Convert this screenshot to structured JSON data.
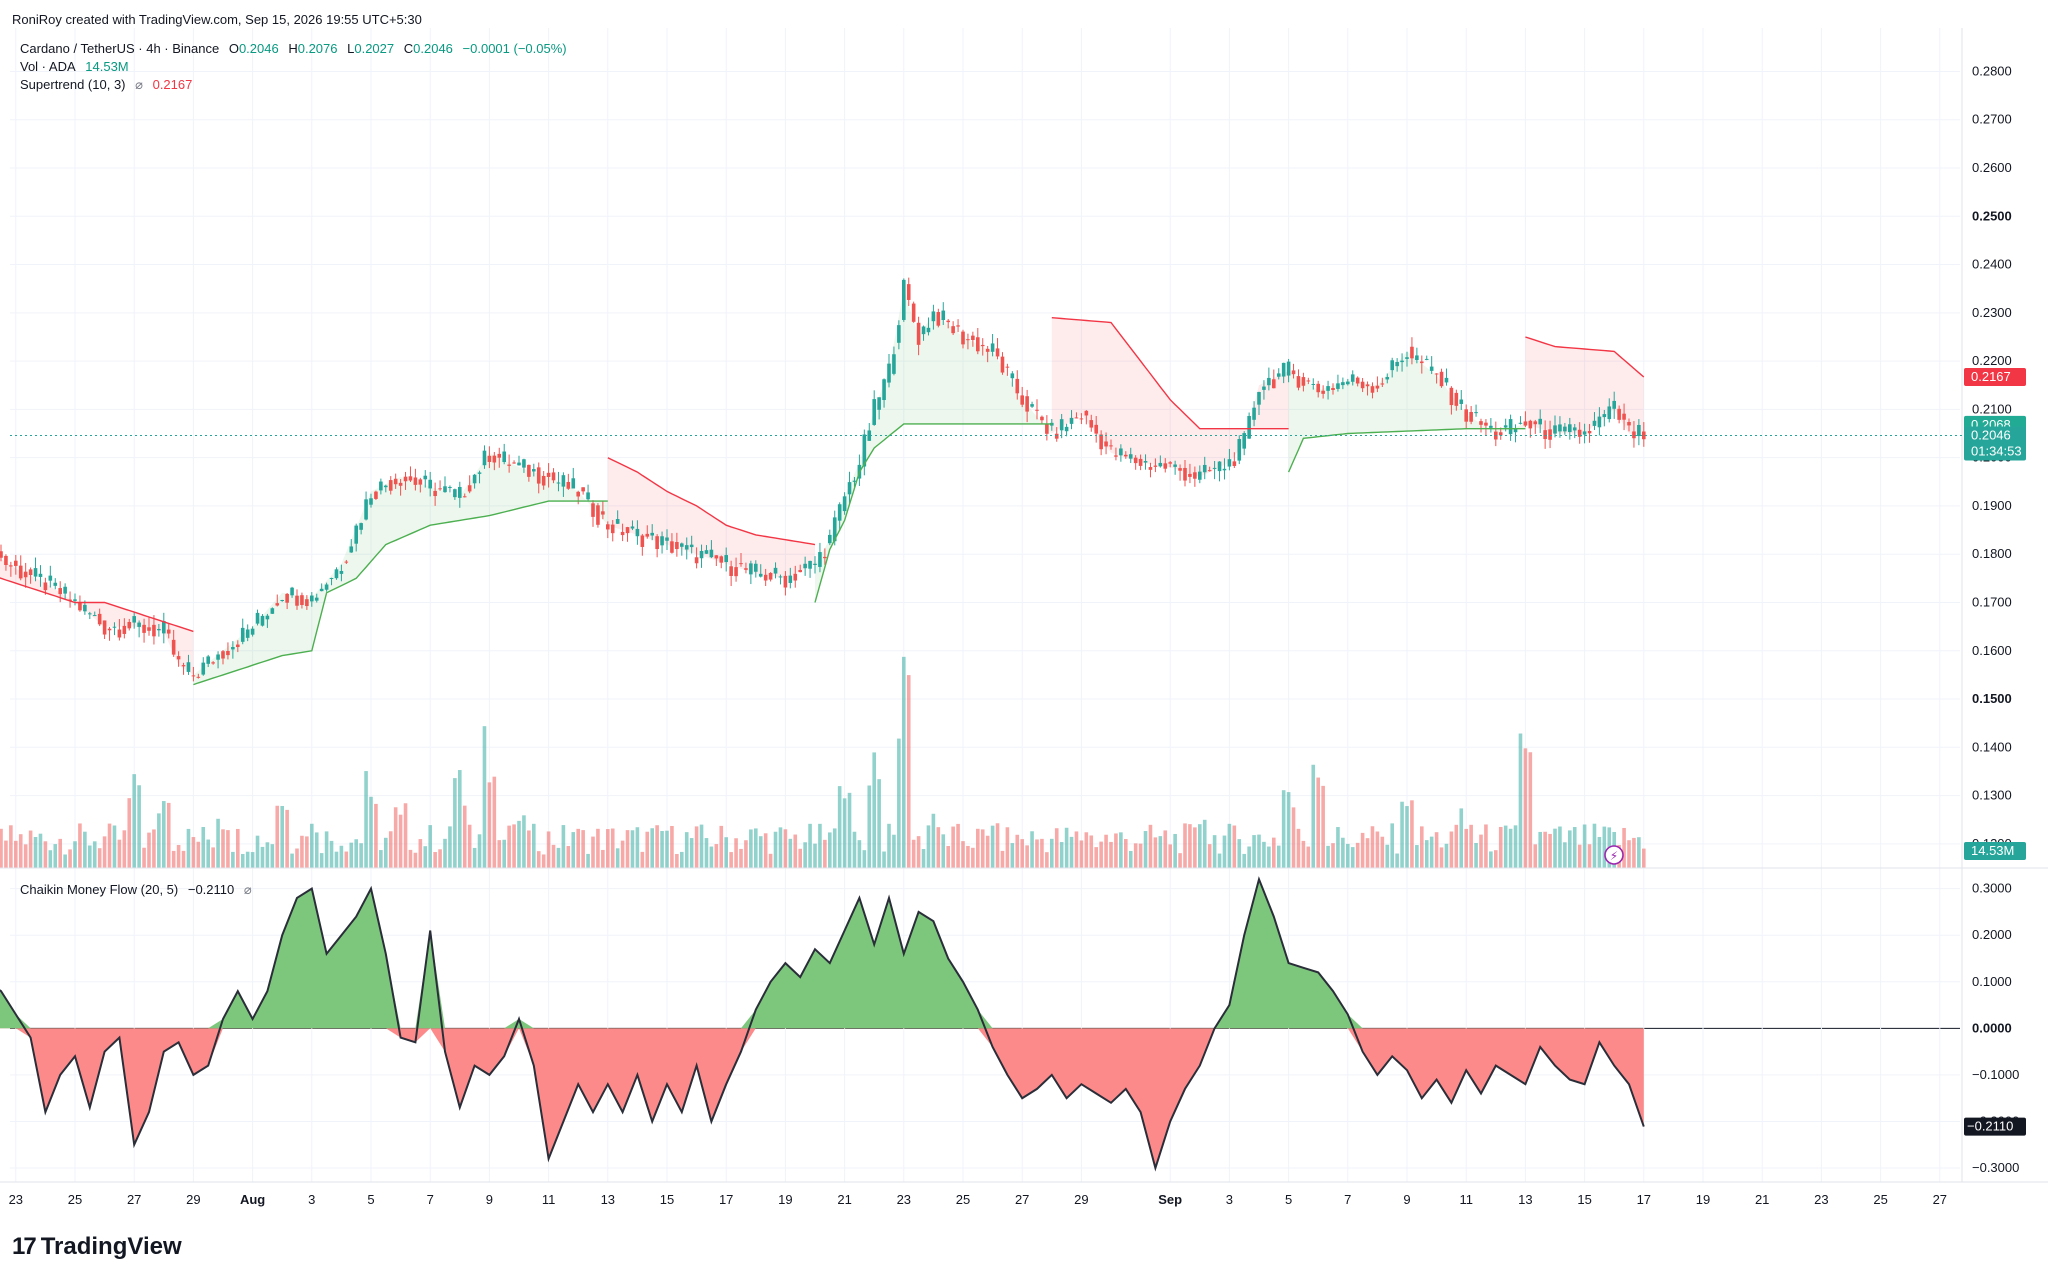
{
  "header": {
    "created_by": "RoniRoy created with TradingView.com, Sep 15, 2026 19:55 UTC+5:30"
  },
  "legend": {
    "symbol": "Cardano / TetherUS · 4h · Binance",
    "o_label": "O",
    "o_value": "0.2046",
    "h_label": "H",
    "h_value": "0.2076",
    "l_label": "L",
    "l_value": "0.2027",
    "c_label": "C",
    "c_value": "0.2046",
    "change": "−0.0001 (−0.05%)",
    "vol_label": "Vol · ADA",
    "vol_value": "14.53M",
    "st_label": "Supertrend (10, 3)",
    "st_value": "0.2167",
    "cmf_label": "Chaikin Money Flow (20, 5)",
    "cmf_value": "−0.2110"
  },
  "price_badges": {
    "supertrend": "0.2167",
    "green_line": "0.2068",
    "last_price": "0.2046",
    "countdown": "01:34:53",
    "volume": "14.53M",
    "cmf": "−0.2110"
  },
  "colors": {
    "up": "#26a69a",
    "down": "#ef5350",
    "st_up": "#4caf50",
    "st_down": "#f23645",
    "cmf_pos": "#7dc77d",
    "cmf_neg": "#fd8a8a",
    "grid": "#f0f3fa",
    "text": "#131722"
  },
  "brand": {
    "name": "TradingView"
  },
  "chart_data": {
    "type": "candlestick",
    "price_axis": {
      "ylim": [
        0.115,
        0.289
      ],
      "ticks": [
        "0.1200",
        "0.1300",
        "0.1400",
        "0.1500",
        "0.1600",
        "0.1700",
        "0.1800",
        "0.1900",
        "0.2000",
        "0.2100",
        "0.2200",
        "0.2300",
        "0.2400",
        "0.2500",
        "0.2600",
        "0.2700",
        "0.2800"
      ]
    },
    "cmf_axis": {
      "ylim": [
        -0.33,
        0.34
      ],
      "ticks": [
        "0.3000",
        "0.2000",
        "0.1000",
        "0.0000",
        "−0.1000",
        "−0.2000",
        "−0.3000"
      ]
    },
    "x_ticks": [
      "23",
      "25",
      "27",
      "29",
      "Aug",
      "3",
      "5",
      "7",
      "9",
      "11",
      "13",
      "15",
      "17",
      "19",
      "21",
      "23",
      "25",
      "27",
      "29",
      "Sep",
      "3",
      "5",
      "7",
      "9",
      "11",
      "13",
      "15",
      "17",
      "19",
      "21",
      "23",
      "25",
      "27"
    ],
    "x_tick_days": [
      -9,
      -7,
      -5,
      -3,
      -1,
      1,
      3,
      5,
      7,
      9,
      11,
      13,
      15,
      17,
      19,
      21,
      23,
      25,
      27,
      30,
      32,
      34,
      36,
      38,
      40,
      42,
      44,
      46,
      48,
      50,
      52,
      54,
      56
    ],
    "price_path": [
      [
        -10.0,
        0.181
      ],
      [
        -9.0,
        0.177
      ],
      [
        -8.0,
        0.174
      ],
      [
        -7.0,
        0.17
      ],
      [
        -6.0,
        0.165
      ],
      [
        -5.0,
        0.165
      ],
      [
        -4.0,
        0.164
      ],
      [
        -3.5,
        0.157
      ],
      [
        -3.0,
        0.155
      ],
      [
        -2.0,
        0.16
      ],
      [
        -1.0,
        0.165
      ],
      [
        0.0,
        0.172
      ],
      [
        1.0,
        0.171
      ],
      [
        2.0,
        0.178
      ],
      [
        3.0,
        0.193
      ],
      [
        4.0,
        0.196
      ],
      [
        5.0,
        0.194
      ],
      [
        6.0,
        0.192
      ],
      [
        7.0,
        0.201
      ],
      [
        8.0,
        0.198
      ],
      [
        9.0,
        0.196
      ],
      [
        10.0,
        0.193
      ],
      [
        11.0,
        0.186
      ],
      [
        12.0,
        0.184
      ],
      [
        13.0,
        0.182
      ],
      [
        14.0,
        0.18
      ],
      [
        15.0,
        0.178
      ],
      [
        16.0,
        0.176
      ],
      [
        17.0,
        0.175
      ],
      [
        18.0,
        0.178
      ],
      [
        18.5,
        0.183
      ],
      [
        19.0,
        0.192
      ],
      [
        19.5,
        0.199
      ],
      [
        20.0,
        0.21
      ],
      [
        20.5,
        0.218
      ],
      [
        21.0,
        0.235
      ],
      [
        21.5,
        0.225
      ],
      [
        22.0,
        0.23
      ],
      [
        23.0,
        0.225
      ],
      [
        24.0,
        0.222
      ],
      [
        25.0,
        0.212
      ],
      [
        26.0,
        0.205
      ],
      [
        27.0,
        0.209
      ],
      [
        28.0,
        0.201
      ],
      [
        29.0,
        0.199
      ],
      [
        30.0,
        0.198
      ],
      [
        31.0,
        0.196
      ],
      [
        32.0,
        0.199
      ],
      [
        32.5,
        0.203
      ],
      [
        33.0,
        0.215
      ],
      [
        34.0,
        0.218
      ],
      [
        35.0,
        0.214
      ],
      [
        36.0,
        0.216
      ],
      [
        37.0,
        0.215
      ],
      [
        38.0,
        0.222
      ],
      [
        39.0,
        0.217
      ],
      [
        40.0,
        0.209
      ],
      [
        41.0,
        0.205
      ],
      [
        42.0,
        0.207
      ],
      [
        43.0,
        0.205
      ],
      [
        44.0,
        0.205
      ],
      [
        45.0,
        0.21
      ],
      [
        45.5,
        0.205
      ],
      [
        46.0,
        0.2046
      ]
    ],
    "supertrend": [
      {
        "dir": "down",
        "points": [
          [
            -10.0,
            0.176
          ],
          [
            -7.0,
            0.17
          ],
          [
            -6.0,
            0.17
          ],
          [
            -5.0,
            0.168
          ],
          [
            -3.0,
            0.164
          ]
        ]
      },
      {
        "dir": "up",
        "points": [
          [
            -3.0,
            0.153
          ],
          [
            -1.0,
            0.157
          ],
          [
            0.0,
            0.159
          ],
          [
            1.0,
            0.16
          ],
          [
            1.5,
            0.172
          ],
          [
            2.5,
            0.175
          ],
          [
            3.5,
            0.182
          ],
          [
            5.0,
            0.186
          ],
          [
            7.0,
            0.188
          ],
          [
            9.0,
            0.191
          ],
          [
            11.0,
            0.191
          ]
        ]
      },
      {
        "dir": "down",
        "points": [
          [
            11.0,
            0.2
          ],
          [
            12.0,
            0.197
          ],
          [
            13.0,
            0.193
          ],
          [
            14.0,
            0.19
          ],
          [
            15.0,
            0.186
          ],
          [
            16.0,
            0.184
          ],
          [
            18.0,
            0.182
          ]
        ]
      },
      {
        "dir": "up",
        "points": [
          [
            18.0,
            0.17
          ],
          [
            18.5,
            0.181
          ],
          [
            19.0,
            0.187
          ],
          [
            19.5,
            0.197
          ],
          [
            20.0,
            0.202
          ],
          [
            21.0,
            0.207
          ],
          [
            26.0,
            0.207
          ]
        ]
      },
      {
        "dir": "down",
        "points": [
          [
            26.0,
            0.229
          ],
          [
            28.0,
            0.228
          ],
          [
            29.0,
            0.22
          ],
          [
            30.0,
            0.212
          ],
          [
            31.0,
            0.206
          ],
          [
            34.0,
            0.206
          ]
        ]
      },
      {
        "dir": "up",
        "points": [
          [
            34.0,
            0.197
          ],
          [
            34.5,
            0.204
          ],
          [
            36.0,
            0.205
          ],
          [
            40.0,
            0.206
          ],
          [
            42.0,
            0.206
          ]
        ]
      },
      {
        "dir": "down",
        "points": [
          [
            42.0,
            0.225
          ],
          [
            43.0,
            0.223
          ],
          [
            45.0,
            0.222
          ],
          [
            46.0,
            0.2167
          ]
        ]
      }
    ],
    "volume_axis_max_m": 120,
    "volume_spikes": [
      [
        -5,
        42
      ],
      [
        -4,
        30
      ],
      [
        -2,
        28
      ],
      [
        0,
        44
      ],
      [
        1,
        24
      ],
      [
        3,
        50
      ],
      [
        4,
        40
      ],
      [
        6,
        45
      ],
      [
        7,
        65
      ],
      [
        8,
        24
      ],
      [
        10,
        16
      ],
      [
        13,
        18
      ],
      [
        16,
        18
      ],
      [
        19,
        40
      ],
      [
        20,
        52
      ],
      [
        21,
        98
      ],
      [
        22,
        30
      ],
      [
        24,
        20
      ],
      [
        27,
        18
      ],
      [
        31,
        22
      ],
      [
        34,
        35
      ],
      [
        35,
        55
      ],
      [
        38,
        42
      ],
      [
        40,
        28
      ],
      [
        42,
        72
      ],
      [
        44,
        14
      ]
    ],
    "cmf_path": [
      [
        -10.0,
        0.1
      ],
      [
        -9.5,
        0.08
      ],
      [
        -9.0,
        0.03
      ],
      [
        -8.5,
        -0.02
      ],
      [
        -8.0,
        -0.18
      ],
      [
        -7.5,
        -0.1
      ],
      [
        -7.0,
        -0.06
      ],
      [
        -6.5,
        -0.17
      ],
      [
        -6.0,
        -0.05
      ],
      [
        -5.5,
        -0.02
      ],
      [
        -5.0,
        -0.25
      ],
      [
        -4.5,
        -0.18
      ],
      [
        -4.0,
        -0.05
      ],
      [
        -3.5,
        -0.03
      ],
      [
        -3.0,
        -0.1
      ],
      [
        -2.5,
        -0.08
      ],
      [
        -2.0,
        0.02
      ],
      [
        -1.5,
        0.08
      ],
      [
        -1.0,
        0.02
      ],
      [
        -0.5,
        0.08
      ],
      [
        0.0,
        0.2
      ],
      [
        0.5,
        0.28
      ],
      [
        1.0,
        0.3
      ],
      [
        1.5,
        0.16
      ],
      [
        2.0,
        0.2
      ],
      [
        2.5,
        0.24
      ],
      [
        3.0,
        0.3
      ],
      [
        3.5,
        0.16
      ],
      [
        4.0,
        -0.02
      ],
      [
        4.5,
        -0.03
      ],
      [
        5.0,
        0.21
      ],
      [
        5.5,
        -0.05
      ],
      [
        6.0,
        -0.17
      ],
      [
        6.5,
        -0.08
      ],
      [
        7.0,
        -0.1
      ],
      [
        7.5,
        -0.06
      ],
      [
        8.0,
        0.02
      ],
      [
        8.5,
        -0.08
      ],
      [
        9.0,
        -0.28
      ],
      [
        9.5,
        -0.2
      ],
      [
        10.0,
        -0.12
      ],
      [
        10.5,
        -0.18
      ],
      [
        11.0,
        -0.12
      ],
      [
        11.5,
        -0.18
      ],
      [
        12.0,
        -0.1
      ],
      [
        12.5,
        -0.2
      ],
      [
        13.0,
        -0.12
      ],
      [
        13.5,
        -0.18
      ],
      [
        14.0,
        -0.08
      ],
      [
        14.5,
        -0.2
      ],
      [
        15.0,
        -0.12
      ],
      [
        15.5,
        -0.05
      ],
      [
        16.0,
        0.04
      ],
      [
        16.5,
        0.1
      ],
      [
        17.0,
        0.14
      ],
      [
        17.5,
        0.11
      ],
      [
        18.0,
        0.17
      ],
      [
        18.5,
        0.14
      ],
      [
        19.0,
        0.21
      ],
      [
        19.5,
        0.28
      ],
      [
        20.0,
        0.18
      ],
      [
        20.5,
        0.28
      ],
      [
        21.0,
        0.16
      ],
      [
        21.5,
        0.25
      ],
      [
        22.0,
        0.23
      ],
      [
        22.5,
        0.15
      ],
      [
        23.0,
        0.1
      ],
      [
        23.5,
        0.04
      ],
      [
        24.0,
        -0.04
      ],
      [
        24.5,
        -0.1
      ],
      [
        25.0,
        -0.15
      ],
      [
        25.5,
        -0.13
      ],
      [
        26.0,
        -0.1
      ],
      [
        26.5,
        -0.15
      ],
      [
        27.0,
        -0.12
      ],
      [
        27.5,
        -0.14
      ],
      [
        28.0,
        -0.16
      ],
      [
        28.5,
        -0.13
      ],
      [
        29.0,
        -0.18
      ],
      [
        29.5,
        -0.3
      ],
      [
        30.0,
        -0.2
      ],
      [
        30.5,
        -0.13
      ],
      [
        31.0,
        -0.08
      ],
      [
        31.5,
        0.0
      ],
      [
        32.0,
        0.05
      ],
      [
        32.5,
        0.2
      ],
      [
        33.0,
        0.32
      ],
      [
        33.5,
        0.24
      ],
      [
        34.0,
        0.14
      ],
      [
        34.5,
        0.13
      ],
      [
        35.0,
        0.12
      ],
      [
        35.5,
        0.08
      ],
      [
        36.0,
        0.03
      ],
      [
        36.5,
        -0.05
      ],
      [
        37.0,
        -0.1
      ],
      [
        37.5,
        -0.06
      ],
      [
        38.0,
        -0.09
      ],
      [
        38.5,
        -0.15
      ],
      [
        39.0,
        -0.11
      ],
      [
        39.5,
        -0.16
      ],
      [
        40.0,
        -0.09
      ],
      [
        40.5,
        -0.14
      ],
      [
        41.0,
        -0.08
      ],
      [
        41.5,
        -0.1
      ],
      [
        42.0,
        -0.12
      ],
      [
        42.5,
        -0.04
      ],
      [
        43.0,
        -0.08
      ],
      [
        43.5,
        -0.11
      ],
      [
        44.0,
        -0.12
      ],
      [
        44.5,
        -0.03
      ],
      [
        45.0,
        -0.08
      ],
      [
        45.5,
        -0.12
      ],
      [
        46.0,
        -0.211
      ]
    ]
  }
}
